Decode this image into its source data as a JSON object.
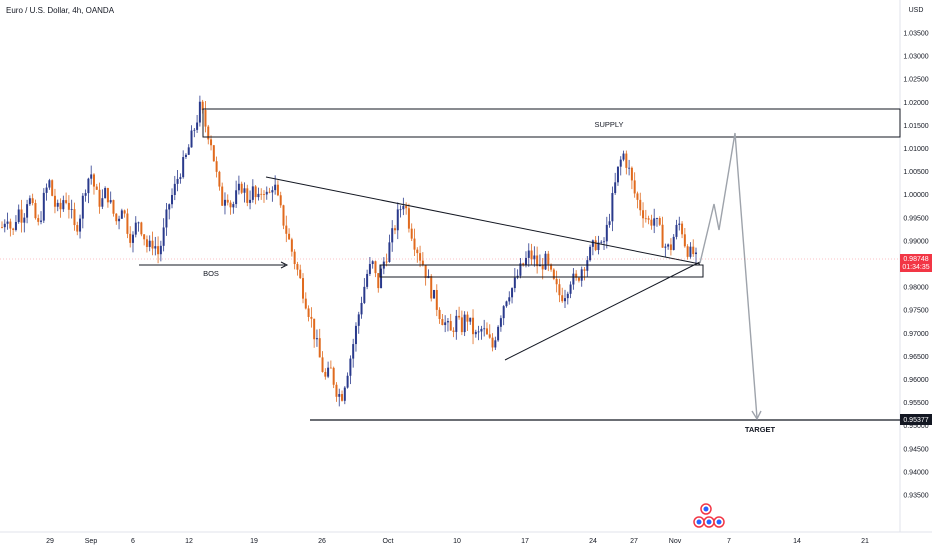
{
  "header": {
    "title": "Euro / U.S. Dollar, 4h, OANDA"
  },
  "chart_data": {
    "type": "candlestick",
    "title": "Euro / U.S. Dollar, 4h, OANDA",
    "currency": "USD",
    "ylim": [
      0.93,
      1.04
    ],
    "y_ticks": [
      "1.03500",
      "1.03000",
      "1.02500",
      "1.02000",
      "1.01500",
      "1.01000",
      "1.00500",
      "1.00000",
      "0.99500",
      "0.99000",
      "0.98500",
      "0.98000",
      "0.97500",
      "0.97000",
      "0.96500",
      "0.96000",
      "0.95500",
      "0.95000",
      "0.94500",
      "0.94000",
      "0.93500"
    ],
    "x_ticks": [
      "29",
      "Sep",
      "6",
      "12",
      "19",
      "26",
      "Oct",
      "10",
      "17",
      "24",
      "27",
      "Nov",
      "7",
      "14",
      "21"
    ],
    "last_price": {
      "value": "0.98748",
      "countdown": "01:34:35"
    },
    "target_price": {
      "value": "0.95377"
    },
    "annotations": {
      "supply": "SUPPLY",
      "bos": "BOS",
      "target": "TARGET"
    },
    "ohlc_path": [
      0.993,
      0.996,
      0.991,
      0.997,
      0.995,
      1.0,
      0.996,
      0.993,
      0.999,
      1.003,
      0.998,
      0.996,
      1.0,
      0.997,
      0.992,
      0.996,
      1.002,
      1.005,
      1.0,
      0.998,
      1.001,
      0.997,
      0.994,
      0.998,
      0.993,
      0.99,
      0.995,
      0.992,
      0.988,
      0.99,
      0.987,
      0.992,
      0.998,
      1.001,
      1.005,
      1.007,
      1.011,
      1.015,
      1.019,
      1.015,
      1.012,
      1.005,
      0.998,
      1.001,
      0.997,
      1.0,
      1.002,
      0.999,
      1.001,
      0.998,
      1.002,
      0.999,
      1.003,
      0.998,
      0.994,
      0.99,
      0.986,
      0.982,
      0.978,
      0.974,
      0.969,
      0.964,
      0.96,
      0.962,
      0.958,
      0.956,
      0.961,
      0.966,
      0.972,
      0.978,
      0.983,
      0.985,
      0.98,
      0.985,
      0.988,
      0.992,
      0.996,
      0.999,
      0.994,
      0.99,
      0.987,
      0.984,
      0.98,
      0.977,
      0.974,
      0.972,
      0.97,
      0.973,
      0.971,
      0.974,
      0.971,
      0.969,
      0.971,
      0.969,
      0.967,
      0.972,
      0.976,
      0.979,
      0.98,
      0.983,
      0.985,
      0.987,
      0.986,
      0.984,
      0.986,
      0.983,
      0.98,
      0.978,
      0.979,
      0.982,
      0.981,
      0.984,
      0.986,
      0.988,
      0.99,
      0.988,
      0.993,
      0.999,
      1.005,
      1.009,
      1.006,
      1.001,
      0.998,
      0.996,
      0.994,
      0.995,
      0.992,
      0.989,
      0.988,
      0.992,
      0.994,
      0.989,
      0.987,
      0.9875
    ]
  }
}
